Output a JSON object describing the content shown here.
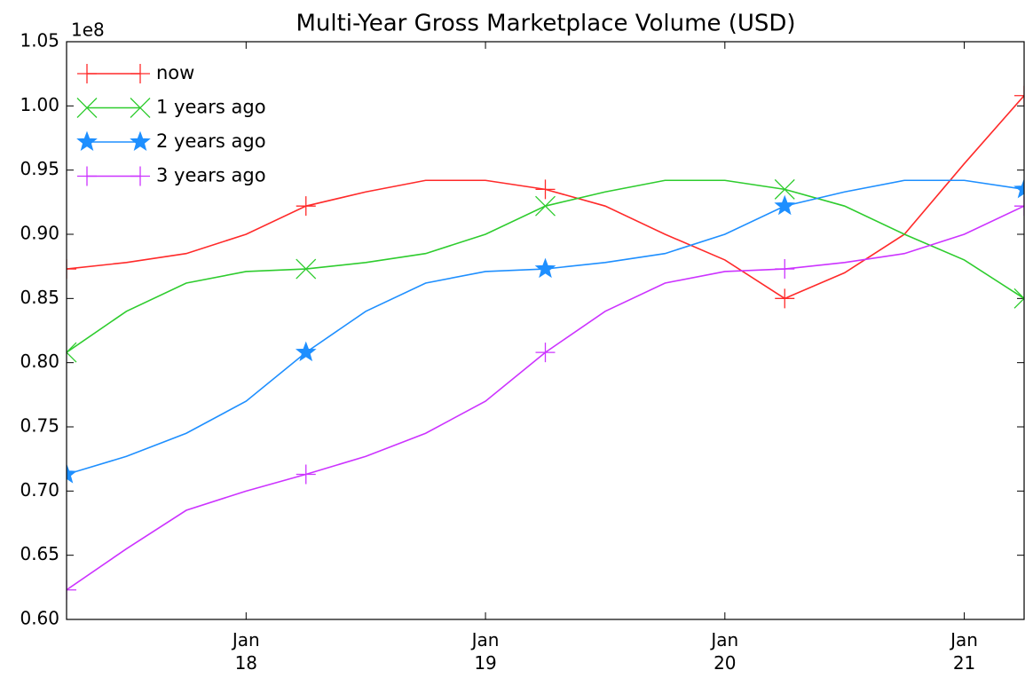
{
  "chart_data": {
    "type": "line",
    "title": "Multi-Year Gross Marketplace Volume (USD)",
    "y_offset_label": "1e8",
    "x": [
      "2017-04",
      "2017-07",
      "2017-10",
      "2018-01",
      "2018-04",
      "2018-07",
      "2018-10",
      "2019-01",
      "2019-04",
      "2019-07",
      "2019-10",
      "2020-01",
      "2020-04",
      "2020-07",
      "2020-10",
      "2021-01",
      "2021-04"
    ],
    "xlim": [
      "2017-04",
      "2021-04"
    ],
    "xticks": [
      {
        "value": "2018-01",
        "label": "Jan\n18"
      },
      {
        "value": "2019-01",
        "label": "Jan\n19"
      },
      {
        "value": "2020-01",
        "label": "Jan\n20"
      },
      {
        "value": "2021-01",
        "label": "Jan\n21"
      }
    ],
    "ylim": [
      0.6,
      1.05
    ],
    "yticks": [
      {
        "value": 0.6,
        "label": "0.60"
      },
      0.65,
      {
        "value": 0.7,
        "label": "0.70"
      },
      0.75,
      {
        "value": 0.8,
        "label": "0.80"
      },
      0.85,
      {
        "value": 0.9,
        "label": "0.90"
      },
      0.95,
      {
        "value": 1.0,
        "label": "1.00"
      },
      1.05
    ],
    "grid": false,
    "legend": "upper left",
    "series": [
      {
        "name": "now",
        "color": "#ff2a2a",
        "marker": "plus",
        "values": [
          0.873,
          0.878,
          0.885,
          0.9,
          0.922,
          0.933,
          0.942,
          0.942,
          0.935,
          0.922,
          0.9,
          0.88,
          0.85,
          0.87,
          0.9,
          0.955,
          1.008
        ]
      },
      {
        "name": "1 years ago",
        "color": "#2ecc2e",
        "marker": "x",
        "values": [
          0.808,
          0.84,
          0.862,
          0.871,
          0.873,
          0.878,
          0.885,
          0.9,
          0.922,
          0.933,
          0.942,
          0.942,
          0.935,
          0.922,
          0.9,
          0.88,
          0.85
        ]
      },
      {
        "name": "2 years ago",
        "color": "#1e8fff",
        "marker": "star",
        "values": [
          0.713,
          0.727,
          0.745,
          0.77,
          0.808,
          0.84,
          0.862,
          0.871,
          0.873,
          0.878,
          0.885,
          0.9,
          0.922,
          0.933,
          0.942,
          0.942,
          0.935
        ]
      },
      {
        "name": "3 years ago",
        "color": "#cc33ff",
        "marker": "plus",
        "values": [
          0.623,
          0.655,
          0.685,
          0.7,
          0.713,
          0.727,
          0.745,
          0.77,
          0.808,
          0.84,
          0.862,
          0.871,
          0.873,
          0.878,
          0.885,
          0.9,
          0.922
        ]
      }
    ]
  }
}
